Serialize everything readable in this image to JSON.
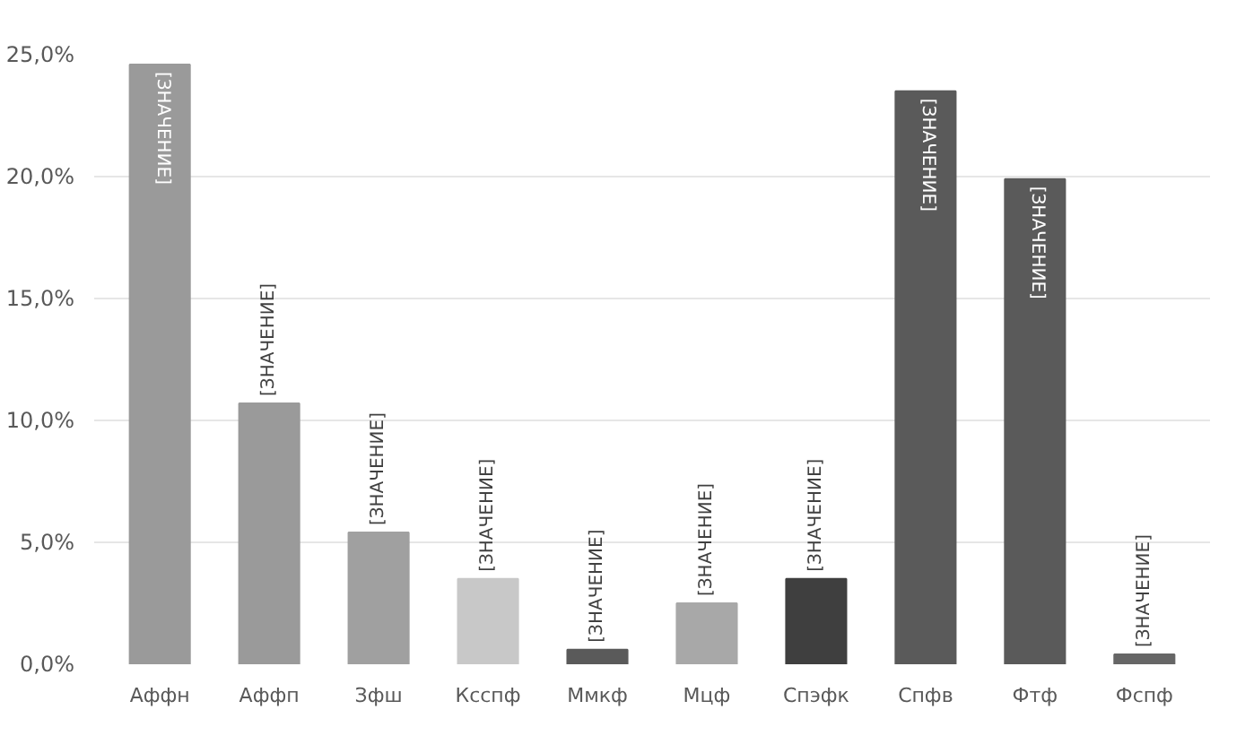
{
  "chart_data": {
    "type": "bar",
    "categories": [
      "Аффн",
      "Аффп",
      "Зфш",
      "Ксспф",
      "Ммкф",
      "Мцф",
      "Спэфк",
      "Спфв",
      "Фтф",
      "Фспф"
    ],
    "values": [
      24.6,
      10.7,
      5.4,
      3.5,
      0.6,
      2.5,
      3.5,
      23.5,
      19.9,
      0.4
    ],
    "colors": [
      "#9a9a9a",
      "#9a9a9a",
      "#a0a0a0",
      "#c8c8c8",
      "#5a5a5a",
      "#a8a8a8",
      "#3f3f3f",
      "#5a5a5a",
      "#5a5a5a",
      "#666666"
    ],
    "value_labels": [
      "[ЗНАЧЕНИЕ]",
      "[ЗНАЧЕНИЕ]",
      "[ЗНАЧЕНИЕ]",
      "[ЗНАЧЕНИЕ]",
      "[ЗНАЧЕНИЕ]",
      "[ЗНАЧЕНИЕ]",
      "[ЗНАЧЕНИЕ]",
      "[ЗНАЧЕНИЕ]",
      "[ЗНАЧЕНИЕ]",
      "[ЗНАЧЕНИЕ]"
    ],
    "ylim": [
      0,
      25
    ],
    "yticks": [
      {
        "value": 0,
        "label": "0,0%"
      },
      {
        "value": 5,
        "label": "5,0%"
      },
      {
        "value": 10,
        "label": "10,0%"
      },
      {
        "value": 15,
        "label": "15,0%"
      },
      {
        "value": 20,
        "label": "20,0%"
      },
      {
        "value": 25,
        "label": "25,0%"
      }
    ],
    "grid": "y"
  }
}
